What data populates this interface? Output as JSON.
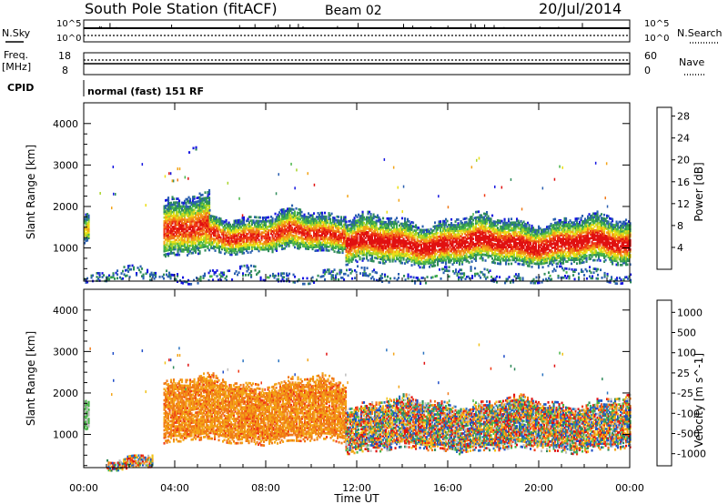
{
  "header": {
    "station": "South Pole Station (fitACF)",
    "beam": "Beam 02",
    "date": "20/Jul/2014"
  },
  "aux_panels": {
    "noise": {
      "left_label": "N.Sky",
      "right_label": "N.Search",
      "left_ticks": [
        "10^5",
        "10^0"
      ],
      "right_ticks": [
        "10^5",
        "10^0"
      ]
    },
    "freq": {
      "left_label_1": "Freq.",
      "left_label_2": "[MHz]",
      "right_label": "Nave",
      "left_ticks": [
        "18",
        "8"
      ],
      "right_ticks": [
        "60",
        "0"
      ]
    },
    "cpid": {
      "label": "CPID",
      "value": "normal (fast) 151 RF"
    }
  },
  "chart_data": [
    {
      "type": "heatmap",
      "panel": "power",
      "ylabel": "Slant Range [km]",
      "yticks": [
        "1000",
        "2000",
        "3000",
        "4000"
      ],
      "ylim": [
        200,
        4500
      ],
      "xlim": [
        0,
        24
      ],
      "colorbar": {
        "label": "Power [dB]",
        "ticks": [
          "4",
          "8",
          "12",
          "16",
          "20",
          "24",
          "28"
        ],
        "colors": [
          "#1515e0",
          "#2a5fb0",
          "#2f8c5a",
          "#48b548",
          "#a8d428",
          "#ecdf16",
          "#f3a417",
          "#f07a18",
          "#ef3a16",
          "#e01010"
        ]
      },
      "echo_regions": [
        {
          "t_start": 0.0,
          "t_end": 0.2,
          "r_low": 1100,
          "r_high": 1800,
          "level": "mid"
        },
        {
          "t_start": 3.5,
          "t_end": 5.5,
          "r_low": 800,
          "r_high": 2200,
          "level": "high"
        },
        {
          "t_start": 5.5,
          "t_end": 9.0,
          "r_low": 900,
          "r_high": 1800,
          "level": "high"
        },
        {
          "t_start": 9.0,
          "t_end": 11.5,
          "r_low": 950,
          "r_high": 1900,
          "level": "high"
        },
        {
          "t_start": 11.5,
          "t_end": 24.0,
          "r_low": 600,
          "r_high": 1700,
          "level": "very_high"
        },
        {
          "t_start": 0.0,
          "t_end": 24.0,
          "r_low": 200,
          "r_high": 420,
          "level": "low"
        },
        {
          "t_start": 4.6,
          "t_end": 4.9,
          "r_low": 3350,
          "r_high": 3500,
          "level": "low"
        }
      ]
    },
    {
      "type": "heatmap",
      "panel": "velocity",
      "ylabel": "Slant Range [km]",
      "yticks": [
        "1000",
        "2000",
        "3000",
        "4000"
      ],
      "ylim": [
        200,
        4500
      ],
      "xlim": [
        0,
        24
      ],
      "xticks": [
        "00:00",
        "04:00",
        "08:00",
        "12:00",
        "16:00",
        "20:00",
        "00:00"
      ],
      "xlabel": "Time UT",
      "colorbar": {
        "label": "Velocity [m s^-1]",
        "ticks": [
          "1000",
          "500",
          "100",
          "25",
          "-25",
          "-100",
          "-500",
          "-1000"
        ],
        "colors": [
          "#1e4cc8",
          "#2a73c0",
          "#2f8a5a",
          "#48b548",
          "#bdbdbd",
          "#f2c217",
          "#f3a417",
          "#f07a18",
          "#ef3a16",
          "#e01010"
        ]
      },
      "echo_regions": [
        {
          "t_start": 0.0,
          "t_end": 0.2,
          "r_low": 1100,
          "r_high": 1800,
          "level": "toward_small"
        },
        {
          "t_start": 3.5,
          "t_end": 11.5,
          "r_low": 800,
          "r_high": 2300,
          "level": "away_medium"
        },
        {
          "t_start": 11.5,
          "t_end": 24.0,
          "r_low": 600,
          "r_high": 1800,
          "level": "mixed"
        },
        {
          "t_start": 1.0,
          "t_end": 3.0,
          "r_low": 200,
          "r_high": 500,
          "level": "mixed"
        }
      ]
    }
  ]
}
